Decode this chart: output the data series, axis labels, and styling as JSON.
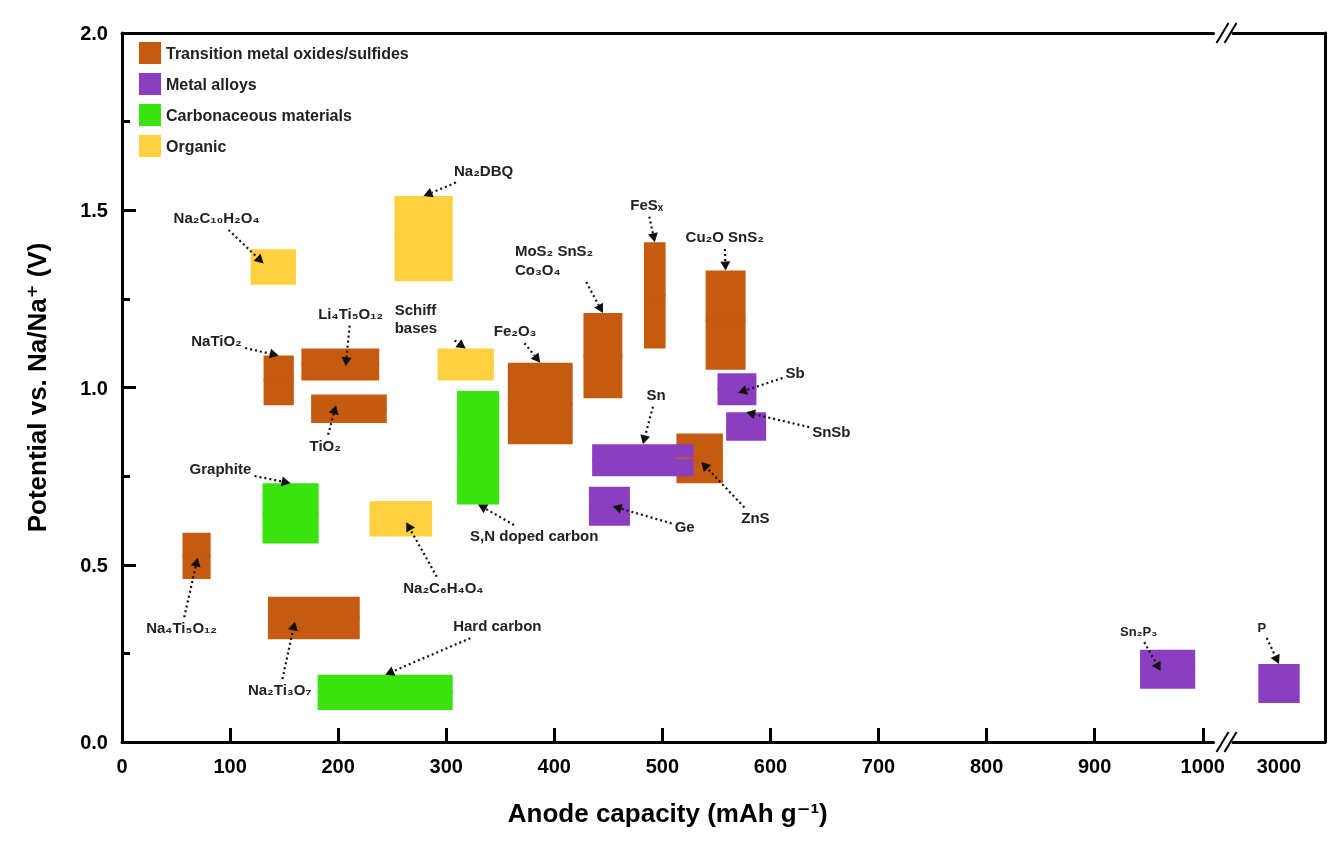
{
  "chart_data": [
    {
      "type": "bar",
      "grid": false,
      "xlabel": "Anode capacity (mAh g⁻¹)",
      "ylabel": "Potential vs. Na/Na⁺ (V)",
      "xlim": [
        0,
        1010
      ],
      "xticks": [
        0,
        100,
        200,
        300,
        400,
        500,
        600,
        700,
        800,
        900,
        1000
      ],
      "ylim": [
        0,
        2.0
      ],
      "yticks": [
        {
          "value": 0,
          "label": "0.0"
        },
        {
          "value": 0.5,
          "label": "0.5"
        },
        {
          "value": 1.0,
          "label": "1.0"
        },
        {
          "value": 1.5,
          "label": "1.5"
        },
        {
          "value": 2.0,
          "label": "2.0"
        }
      ],
      "legend": "top left",
      "series": [
        {
          "name": "Transition metal oxides/sulfides",
          "color": "#c55a11",
          "x": [
            69,
            145,
            177.5,
            202,
            210,
            387,
            445,
            493,
            534.5,
            558.5
          ],
          "base": [
            0.46,
            0.95,
            0.29,
            1.02,
            0.9,
            0.84,
            0.97,
            1.11,
            0.73,
            1.05
          ],
          "values": [
            0.13,
            0.14,
            0.12,
            0.09,
            0.08,
            0.23,
            0.24,
            0.3,
            0.14,
            0.28
          ],
          "xerrors": [
            13,
            14,
            42.5,
            36,
            35,
            30,
            18,
            10,
            21.5,
            18.5
          ]
        },
        {
          "name": "Metal alloys",
          "color": "#8b3fc0",
          "x": [
            451,
            482,
            569,
            577.5,
            967.5
          ],
          "base": [
            0.61,
            0.75,
            0.95,
            0.85,
            0.15
          ],
          "values": [
            0.11,
            0.09,
            0.09,
            0.08,
            0.11
          ],
          "xerrors": [
            19,
            47,
            18,
            18.5,
            25.5
          ]
        },
        {
          "name": "Carbonaceous materials",
          "color": "#3ae20e",
          "x": [
            156,
            243.5,
            329.5
          ],
          "base": [
            0.56,
            0.09,
            0.67
          ],
          "values": [
            0.17,
            0.1,
            0.32
          ],
          "xerrors": [
            26,
            62.5,
            19.5
          ]
        },
        {
          "name": "Organic",
          "color": "#ffd040",
          "x": [
            140,
            258,
            279,
            318
          ],
          "base": [
            1.29,
            0.58,
            1.3,
            1.02
          ],
          "values": [
            0.1,
            0.1,
            0.24,
            0.09
          ],
          "xerrors": [
            21,
            29,
            27,
            26
          ]
        }
      ],
      "annotations": [
        {
          "text": "Na₂C₁₀H₂O₄",
          "x": 131,
          "y": 1.35
        },
        {
          "text": "Na₂DBQ",
          "x": 279,
          "y": 1.54
        },
        {
          "text": "Li₄Ti₅O₁₂",
          "x": 207,
          "y": 1.06
        },
        {
          "text": "NaTiO₂",
          "x": 145,
          "y": 1.09
        },
        {
          "text": "TiO₂",
          "x": 198,
          "y": 0.95
        },
        {
          "text": "Schiff bases",
          "x": 318,
          "y": 1.11
        },
        {
          "text": "Fe₂O₃",
          "x": 387,
          "y": 1.07
        },
        {
          "text": "MoS₂ SnS₂ Co₃O₄",
          "x": 445,
          "y": 1.21
        },
        {
          "text": "FeSₓ",
          "x": 493,
          "y": 1.41
        },
        {
          "text": "Cu₂O SnS₂",
          "x": 558.5,
          "y": 1.33
        },
        {
          "text": "Sb",
          "x": 570,
          "y": 0.985
        },
        {
          "text": "SnSb",
          "x": 577.5,
          "y": 0.93
        },
        {
          "text": "Sn",
          "x": 482,
          "y": 0.84
        },
        {
          "text": "ZnS",
          "x": 536,
          "y": 0.79
        },
        {
          "text": "Ge",
          "x": 454,
          "y": 0.665
        },
        {
          "text": "Graphite",
          "x": 156,
          "y": 0.73
        },
        {
          "text": "S,N doped carbon",
          "x": 329.5,
          "y": 0.67
        },
        {
          "text": "Na₂C₆H₄O₄",
          "x": 263,
          "y": 0.62
        },
        {
          "text": "Na₄Ti₅O₁₂",
          "x": 70,
          "y": 0.52
        },
        {
          "text": "Na₂Ti₃O₇",
          "x": 160,
          "y": 0.34
        },
        {
          "text": "Hard carbon",
          "x": 243.5,
          "y": 0.19
        },
        {
          "text": "Sn₂P₃",
          "x": 961,
          "y": 0.2
        }
      ]
    },
    {
      "type": "bar",
      "categories": [
        "3000"
      ],
      "ylim": [
        0,
        2.0
      ],
      "tick_labels": "x",
      "series": [
        {
          "color": "#8b3fc0",
          "base": [
            0.11
          ],
          "values": [
            0.11
          ]
        }
      ],
      "annotations": [
        {
          "text": "P",
          "x": "3000",
          "y": 0.22
        }
      ]
    }
  ]
}
